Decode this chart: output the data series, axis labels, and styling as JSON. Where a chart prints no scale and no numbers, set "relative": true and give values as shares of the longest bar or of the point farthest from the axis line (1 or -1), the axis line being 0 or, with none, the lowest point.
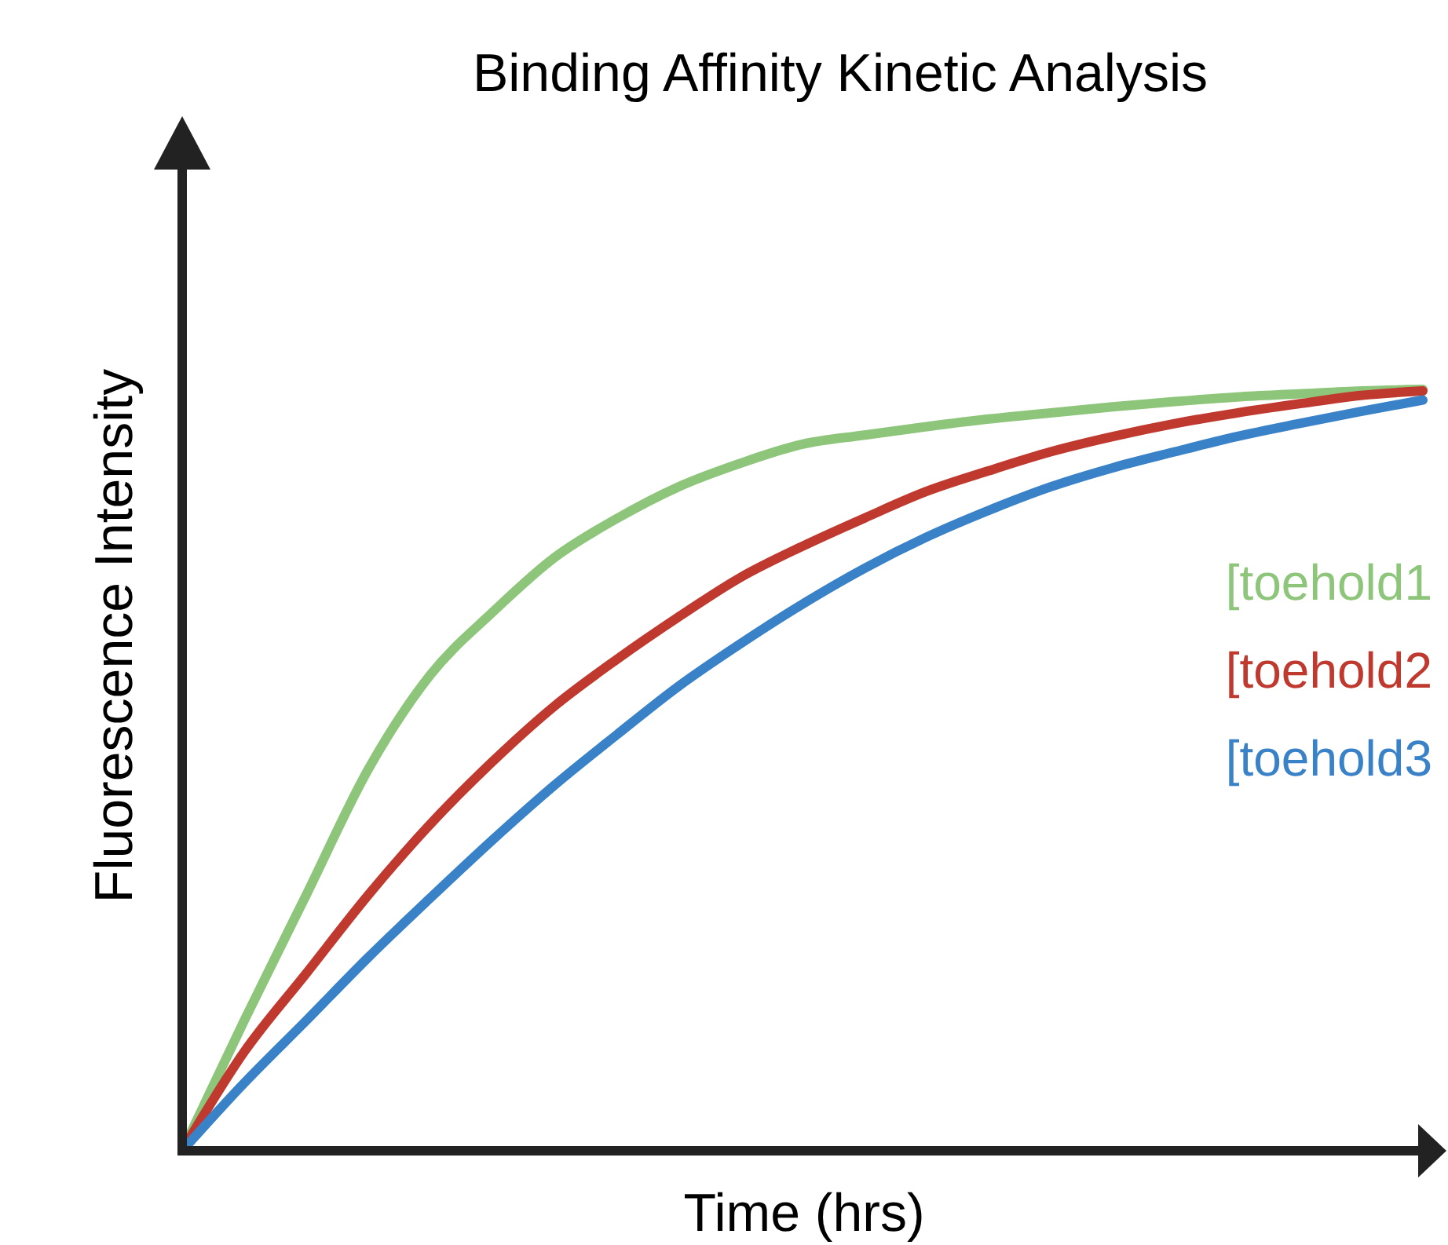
{
  "chart_data": {
    "type": "line",
    "title": "Binding Affinity Kinetic Analysis",
    "xlabel": "Time (hrs)",
    "ylabel": "Fluorescence Intensity",
    "relative": true,
    "legend": false,
    "marker": "none",
    "line_style": "solid",
    "grid": false,
    "categories": [
      null,
      null,
      null,
      null,
      null,
      null,
      null,
      null,
      null,
      null,
      null,
      null,
      null,
      null,
      null,
      null,
      null,
      null,
      null,
      null,
      null
    ],
    "series": [
      {
        "name": "[toehold1",
        "color": "#8dc67a",
        "values": [
          0,
          0.171,
          0.336,
          0.501,
          0.625,
          0.707,
          0.779,
          0.83,
          0.872,
          0.903,
          0.928,
          0.94,
          0.951,
          0.961,
          0.969,
          0.977,
          0.984,
          0.99,
          0.994,
          0.998,
          1
        ]
      },
      {
        "name": "[toehold2",
        "color": "#c0392f",
        "values": [
          0,
          0.13,
          0.233,
          0.336,
          0.429,
          0.511,
          0.584,
          0.645,
          0.701,
          0.753,
          0.794,
          0.831,
          0.866,
          0.893,
          0.918,
          0.938,
          0.955,
          0.969,
          0.981,
          0.992,
          0.998
        ]
      },
      {
        "name": "[toehold3",
        "color": "#3a82c8",
        "values": [
          0,
          0.089,
          0.171,
          0.254,
          0.332,
          0.408,
          0.48,
          0.546,
          0.61,
          0.666,
          0.718,
          0.765,
          0.806,
          0.841,
          0.872,
          0.897,
          0.918,
          0.938,
          0.955,
          0.971,
          0.986
        ]
      }
    ]
  }
}
